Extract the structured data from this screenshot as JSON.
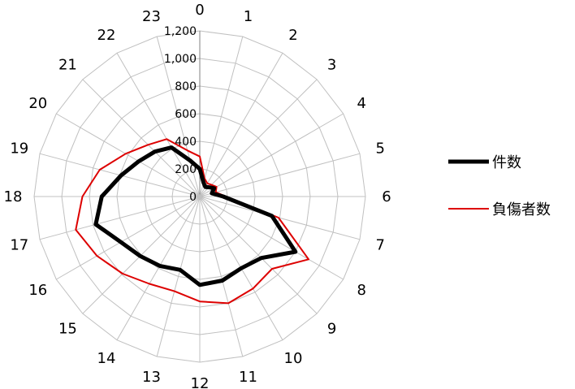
{
  "chart_data": {
    "type": "radar",
    "categories": [
      "0",
      "1",
      "2",
      "3",
      "4",
      "5",
      "6",
      "7",
      "8",
      "9",
      "10",
      "11",
      "12",
      "13",
      "14",
      "15",
      "16",
      "17",
      "18",
      "19",
      "20",
      "21",
      "22",
      "23"
    ],
    "rticks": [
      "0",
      "200",
      "400",
      "600",
      "800",
      "1,000",
      "1,200"
    ],
    "rlim": [
      0,
      1200
    ],
    "grid": true,
    "legend_position": "right",
    "series": [
      {
        "name": "件数",
        "color": "#000000",
        "values": [
          200,
          105,
          80,
          95,
          120,
          90,
          170,
          540,
          800,
          630,
          600,
          630,
          640,
          550,
          580,
          610,
          660,
          780,
          710,
          590,
          510,
          460,
          410,
          270
        ]
      },
      {
        "name": "負傷者数",
        "color": "#dd0000",
        "values": [
          290,
          135,
          110,
          120,
          140,
          120,
          190,
          590,
          910,
          740,
          770,
          800,
          760,
          710,
          730,
          790,
          860,
          930,
          850,
          750,
          620,
          530,
          480,
          345
        ]
      }
    ]
  }
}
